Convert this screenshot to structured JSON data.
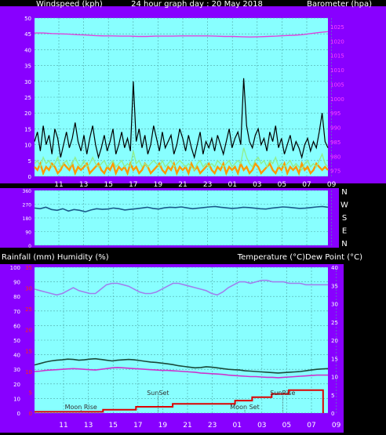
{
  "colors": {
    "background": "#000000",
    "frame": "#8800ff",
    "plot": "#88ffff",
    "grid": "#4fa7a7",
    "wind_gust": "#000000",
    "wind_avg": "#90ee90",
    "wind_orange": "#ff9900",
    "barometer": "#dd44dd",
    "direction": "#1a5a8a",
    "humidity": "#a080ee",
    "temperature": "#1a4a3a",
    "dew_point": "#cc33cc",
    "rainfall": "#dd0000",
    "axis_text": "#ffffff",
    "magenta_text": "#ff44ff",
    "red_text": "#ff2222"
  },
  "header": {
    "left": "Windspeed (kph)",
    "center": "24 hour graph day : 20 May 2018",
    "right": "Barometer (hpa)"
  },
  "mid_header": {
    "left": "Rainfall (mm)  Humidity (%)",
    "right": "Temperature (°C)Dew Point (°C)"
  },
  "chart_data": [
    {
      "type": "line",
      "name": "wind-barometer",
      "x_ticks": [
        "11",
        "13",
        "15",
        "17",
        "19",
        "21",
        "23",
        "01",
        "03",
        "05",
        "07",
        "09"
      ],
      "y_left": {
        "label": "Windspeed (kph)",
        "range": [
          0,
          50
        ],
        "ticks": [
          "0",
          "5",
          "10",
          "15",
          "20",
          "25",
          "30",
          "35",
          "40",
          "45",
          "50"
        ]
      },
      "y_right": {
        "label": "Barometer (hpa)",
        "range": [
          973,
          1028
        ],
        "ticks": [
          "975",
          "980",
          "985",
          "990",
          "995",
          "1000",
          "1005",
          "1010",
          "1015",
          "1020",
          "1025"
        ]
      },
      "series": {
        "gust": [
          11,
          14,
          8,
          16,
          10,
          13,
          7,
          15,
          12,
          6,
          10,
          14,
          9,
          12,
          17,
          11,
          8,
          13,
          7,
          12,
          16,
          10,
          6,
          9,
          13,
          8,
          11,
          15,
          7,
          10,
          14,
          9,
          12,
          8,
          30,
          11,
          15,
          9,
          13,
          7,
          10,
          16,
          12,
          8,
          14,
          9,
          11,
          13,
          7,
          10,
          15,
          12,
          8,
          13,
          9,
          6,
          10,
          14,
          7,
          11,
          9,
          12,
          8,
          13,
          10,
          7,
          11,
          15,
          9,
          12,
          14,
          10,
          31,
          16,
          11,
          9,
          13,
          15,
          10,
          12,
          8,
          14,
          11,
          16,
          9,
          12,
          7,
          10,
          13,
          8,
          11,
          9,
          6,
          10,
          12,
          8,
          11,
          9,
          14,
          20,
          11,
          9
        ],
        "average": [
          4,
          5,
          3,
          6,
          4,
          5,
          3,
          4,
          6,
          3,
          4,
          5,
          3,
          4,
          6,
          4,
          3,
          5,
          3,
          4,
          6,
          4,
          3,
          4,
          5,
          3,
          4,
          5,
          3,
          4,
          5,
          3,
          4,
          3,
          8,
          4,
          5,
          3,
          4,
          3,
          4,
          5,
          4,
          3,
          5,
          3,
          4,
          5,
          3,
          4,
          5,
          4,
          3,
          4,
          3,
          2,
          4,
          5,
          3,
          4,
          3,
          4,
          3,
          5,
          4,
          3,
          4,
          5,
          3,
          4,
          5,
          4,
          9,
          6,
          4,
          3,
          5,
          6,
          4,
          5,
          3,
          5,
          4,
          6,
          3,
          4,
          3,
          4,
          5,
          3,
          4,
          3,
          2,
          4,
          5,
          3,
          4,
          3,
          5,
          7,
          4,
          3
        ],
        "orange": [
          3,
          2,
          4,
          1,
          3,
          2,
          4,
          3,
          1,
          2,
          4,
          3,
          2,
          4,
          1,
          3,
          2,
          3,
          4,
          1,
          2,
          3,
          4,
          2,
          1,
          3,
          2,
          4,
          1,
          3,
          2,
          3,
          1,
          4,
          2,
          3,
          1,
          2,
          4,
          3,
          1,
          2,
          3,
          4,
          2,
          1,
          3,
          2,
          4,
          1,
          3,
          2,
          3,
          1,
          4,
          2,
          3,
          1,
          2,
          3,
          4,
          2,
          1,
          3,
          2,
          4,
          1,
          3,
          2,
          3,
          1,
          4,
          2,
          3,
          1,
          2,
          4,
          3,
          1,
          2,
          3,
          4,
          2,
          1,
          3,
          2,
          4,
          1,
          3,
          2,
          3,
          1,
          4,
          2,
          3,
          1,
          2,
          4,
          3,
          2,
          3,
          2
        ],
        "barometer": [
          1022.8,
          1022.8,
          1022.6,
          1022.5,
          1022.4,
          1022.2,
          1022.1,
          1021.9,
          1021.8,
          1021.8,
          1021.7,
          1021.7,
          1021.6,
          1021.6,
          1021.7,
          1021.7,
          1021.7,
          1021.8,
          1021.8,
          1021.8,
          1021.8,
          1021.7,
          1021.6,
          1021.6,
          1021.5,
          1021.4,
          1021.5,
          1021.6,
          1021.7,
          1021.9,
          1022.0,
          1022.2,
          1022.6,
          1023.0,
          1023.3
        ]
      }
    },
    {
      "type": "line",
      "name": "wind-direction",
      "y_right_labels": [
        "N",
        "W",
        "S",
        "E",
        "N"
      ],
      "y_left_ticks": [
        "360",
        "270",
        "180",
        "90",
        "0"
      ],
      "range": [
        0,
        360
      ],
      "series": {
        "direction": [
          245,
          240,
          250,
          235,
          230,
          240,
          225,
          235,
          230,
          220,
          232,
          240,
          236,
          238,
          245,
          240,
          232,
          236,
          240,
          245,
          250,
          242,
          238,
          246,
          250,
          248,
          252,
          246,
          240,
          244,
          248,
          252,
          255,
          250,
          246,
          242,
          245,
          250,
          248,
          244,
          240,
          238,
          244,
          248,
          252,
          250,
          246,
          242,
          244,
          248,
          252,
          255,
          250
        ]
      }
    },
    {
      "type": "line",
      "name": "rain-humidity-temperature",
      "y_left": {
        "label": "Rainfall (mm)  Humidity (%)",
        "range": [
          0,
          100
        ],
        "ticks": [
          "0",
          "10",
          "20",
          "30",
          "40",
          "50",
          "60",
          "70",
          "80",
          "90",
          "100"
        ]
      },
      "y_left_red": {
        "label": "Rainfall (mm)",
        "range": [
          0,
          35
        ],
        "ticks": [
          "0",
          "5",
          "10",
          "15",
          "20",
          "25",
          "30",
          "35"
        ]
      },
      "y_right": {
        "label": "Temperature (°C)Dew Point (°C)",
        "range": [
          0,
          40
        ],
        "ticks": [
          "0",
          "5",
          "10",
          "15",
          "20",
          "25",
          "30",
          "35",
          "40"
        ]
      },
      "series": {
        "humidity": [
          85,
          84,
          83,
          82,
          81,
          82,
          84,
          86,
          84,
          83,
          82,
          82,
          85,
          88,
          89,
          89,
          88,
          87,
          85,
          83,
          82,
          82,
          83,
          85,
          87,
          89,
          89,
          88,
          87,
          86,
          85,
          84,
          82,
          81,
          83,
          86,
          88,
          90,
          90,
          89,
          90,
          91,
          91,
          90,
          90,
          90,
          89,
          89,
          89,
          88,
          88,
          88,
          88,
          88
        ],
        "temperature": [
          13.2,
          13.6,
          14.0,
          14.3,
          14.5,
          14.6,
          14.8,
          14.7,
          14.5,
          14.6,
          14.8,
          14.9,
          14.7,
          14.5,
          14.3,
          14.5,
          14.6,
          14.7,
          14.6,
          14.4,
          14.2,
          14.0,
          13.9,
          13.7,
          13.5,
          13.3,
          13.0,
          12.8,
          12.6,
          12.4,
          12.5,
          12.7,
          12.6,
          12.4,
          12.2,
          12.0,
          11.9,
          11.8,
          11.6,
          11.5,
          11.4,
          11.3,
          11.2,
          11.1,
          11.0,
          11.1,
          11.2,
          11.3,
          11.4,
          11.6,
          11.8,
          12.0,
          12.1,
          12.2
        ],
        "dew_point": [
          11.4,
          11.5,
          11.7,
          11.8,
          11.9,
          12.0,
          12.1,
          12.2,
          12.1,
          12.0,
          11.9,
          11.8,
          12.0,
          12.2,
          12.4,
          12.5,
          12.4,
          12.3,
          12.2,
          12.1,
          12.0,
          11.9,
          11.8,
          11.7,
          11.7,
          11.6,
          11.5,
          11.4,
          11.3,
          11.2,
          11.0,
          10.9,
          10.8,
          10.7,
          10.6,
          10.4,
          10.3,
          10.2,
          10.1,
          10.0,
          10.0,
          9.9,
          9.8,
          9.8,
          9.7,
          9.8,
          9.9,
          10.0,
          10.1,
          10.2,
          10.3,
          10.4,
          10.4,
          10.4
        ],
        "rainfall_steps": [
          {
            "x": 0,
            "v": 0.3
          },
          {
            "x": 5.6,
            "v": 0.8
          },
          {
            "x": 8.3,
            "v": 1.5
          },
          {
            "x": 11.3,
            "v": 2.2
          },
          {
            "x": 16.4,
            "v": 3.0
          },
          {
            "x": 17.8,
            "v": 3.8
          },
          {
            "x": 19.4,
            "v": 4.6
          },
          {
            "x": 20.8,
            "v": 5.5
          },
          {
            "x": 22.6,
            "v": 5.5
          },
          {
            "x": 23.6,
            "v": 0
          }
        ]
      },
      "annotations": [
        {
          "label": "Moon Rise",
          "x": 3.8,
          "level": 0
        },
        {
          "label": "SunSet",
          "x": 10.1,
          "level": 1
        },
        {
          "label": "Moon Set",
          "x": 17.2,
          "level": 0
        },
        {
          "label": "SunRise",
          "x": 20.3,
          "level": 1
        }
      ]
    }
  ]
}
